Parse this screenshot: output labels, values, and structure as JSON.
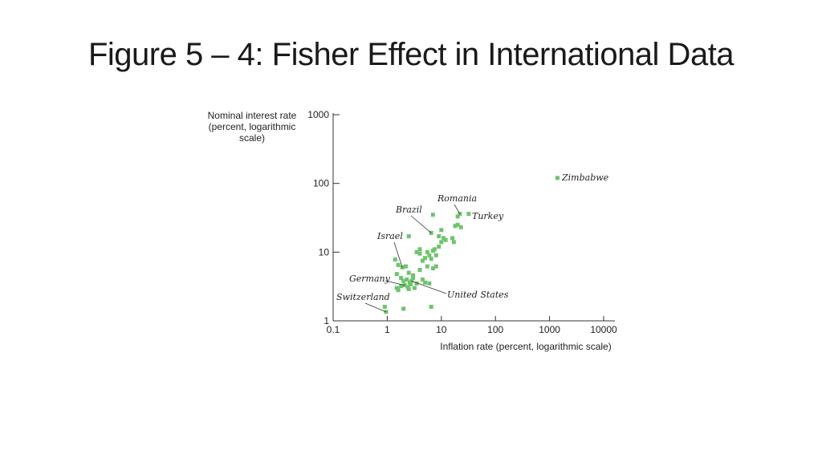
{
  "title": "Figure 5 – 4: Fisher Effect in International Data",
  "chart_data": {
    "type": "scatter",
    "x_scale": "log",
    "y_scale": "log",
    "xlim": [
      0.1,
      10000
    ],
    "ylim": [
      1,
      1000
    ],
    "x_ticks": [
      "0.1",
      "1",
      "10",
      "100",
      "1000",
      "10000"
    ],
    "y_ticks": [
      "1",
      "10",
      "100",
      "1000"
    ],
    "xlabel": "Inflation rate (percent, logarithmic scale)",
    "ylabel_lines": [
      "Nominal interest rate",
      "(percent, logarithmic",
      "scale)"
    ],
    "grid": false,
    "marker_color": "#6cc56c",
    "points": [
      {
        "x": 0.9,
        "y": 1.6
      },
      {
        "x": 0.95,
        "y": 1.35
      },
      {
        "x": 2.0,
        "y": 1.5
      },
      {
        "x": 6.5,
        "y": 1.6
      },
      {
        "x": 1.4,
        "y": 7.8
      },
      {
        "x": 1.6,
        "y": 6.5
      },
      {
        "x": 1.9,
        "y": 6.0
      },
      {
        "x": 2.2,
        "y": 6.2
      },
      {
        "x": 2.5,
        "y": 5.0
      },
      {
        "x": 1.5,
        "y": 4.8
      },
      {
        "x": 1.8,
        "y": 4.2
      },
      {
        "x": 2.0,
        "y": 3.8
      },
      {
        "x": 2.3,
        "y": 4.0
      },
      {
        "x": 2.6,
        "y": 3.6
      },
      {
        "x": 3.0,
        "y": 4.2
      },
      {
        "x": 1.5,
        "y": 3.0
      },
      {
        "x": 1.8,
        "y": 3.2
      },
      {
        "x": 2.1,
        "y": 3.3
      },
      {
        "x": 2.4,
        "y": 3.1
      },
      {
        "x": 2.7,
        "y": 3.4
      },
      {
        "x": 3.2,
        "y": 3.0
      },
      {
        "x": 1.6,
        "y": 2.8
      },
      {
        "x": 2.5,
        "y": 2.9
      },
      {
        "x": 2.8,
        "y": 3.8
      },
      {
        "x": 3.5,
        "y": 3.5
      },
      {
        "x": 4.5,
        "y": 4.0
      },
      {
        "x": 5.0,
        "y": 3.6
      },
      {
        "x": 6.0,
        "y": 3.5
      },
      {
        "x": 3.0,
        "y": 4.6
      },
      {
        "x": 4.0,
        "y": 5.5
      },
      {
        "x": 5.5,
        "y": 6.2
      },
      {
        "x": 7.0,
        "y": 5.8
      },
      {
        "x": 8.0,
        "y": 6.2
      },
      {
        "x": 4.5,
        "y": 7.5
      },
      {
        "x": 5.0,
        "y": 8.2
      },
      {
        "x": 6.0,
        "y": 9.0
      },
      {
        "x": 4.0,
        "y": 9.5
      },
      {
        "x": 5.5,
        "y": 10.0
      },
      {
        "x": 7.0,
        "y": 10.5
      },
      {
        "x": 8.0,
        "y": 9.0
      },
      {
        "x": 6.5,
        "y": 8.0
      },
      {
        "x": 7.5,
        "y": 11.0
      },
      {
        "x": 9.0,
        "y": 12.0
      },
      {
        "x": 10.0,
        "y": 14.0
      },
      {
        "x": 11.0,
        "y": 16.0
      },
      {
        "x": 12.0,
        "y": 15.0
      },
      {
        "x": 9.0,
        "y": 17.0
      },
      {
        "x": 10.0,
        "y": 21.0
      },
      {
        "x": 16.0,
        "y": 16.0
      },
      {
        "x": 17.0,
        "y": 14.0
      },
      {
        "x": 20.0,
        "y": 25.0
      },
      {
        "x": 23.0,
        "y": 23.0
      },
      {
        "x": 18.0,
        "y": 24.0
      },
      {
        "x": 20.0,
        "y": 33.0
      },
      {
        "x": 22.0,
        "y": 36.0
      },
      {
        "x": 32.0,
        "y": 36.0
      },
      {
        "x": 7.0,
        "y": 35.0
      },
      {
        "x": 2.5,
        "y": 17.0
      },
      {
        "x": 6.5,
        "y": 19.0
      },
      {
        "x": 3.5,
        "y": 10.0
      },
      {
        "x": 4.0,
        "y": 11.0
      },
      {
        "x": 1400,
        "y": 120
      }
    ],
    "annotations": [
      {
        "label": "Zimbabwe",
        "x": 1400,
        "y": 120,
        "leader": false
      },
      {
        "label": "Romania",
        "x": 22.0,
        "y": 36.0,
        "leader": true
      },
      {
        "label": "Turkey",
        "x": 32.0,
        "y": 36.0,
        "leader": false
      },
      {
        "label": "Brazil",
        "x": 6.5,
        "y": 19.0,
        "leader": true
      },
      {
        "label": "Israel",
        "x": 1.9,
        "y": 6.0,
        "leader": true
      },
      {
        "label": "Germany",
        "x": 2.1,
        "y": 3.3,
        "leader": true
      },
      {
        "label": "United States",
        "x": 2.8,
        "y": 3.8,
        "leader": true
      },
      {
        "label": "Switzerland",
        "x": 0.95,
        "y": 1.35,
        "leader": true
      }
    ]
  }
}
